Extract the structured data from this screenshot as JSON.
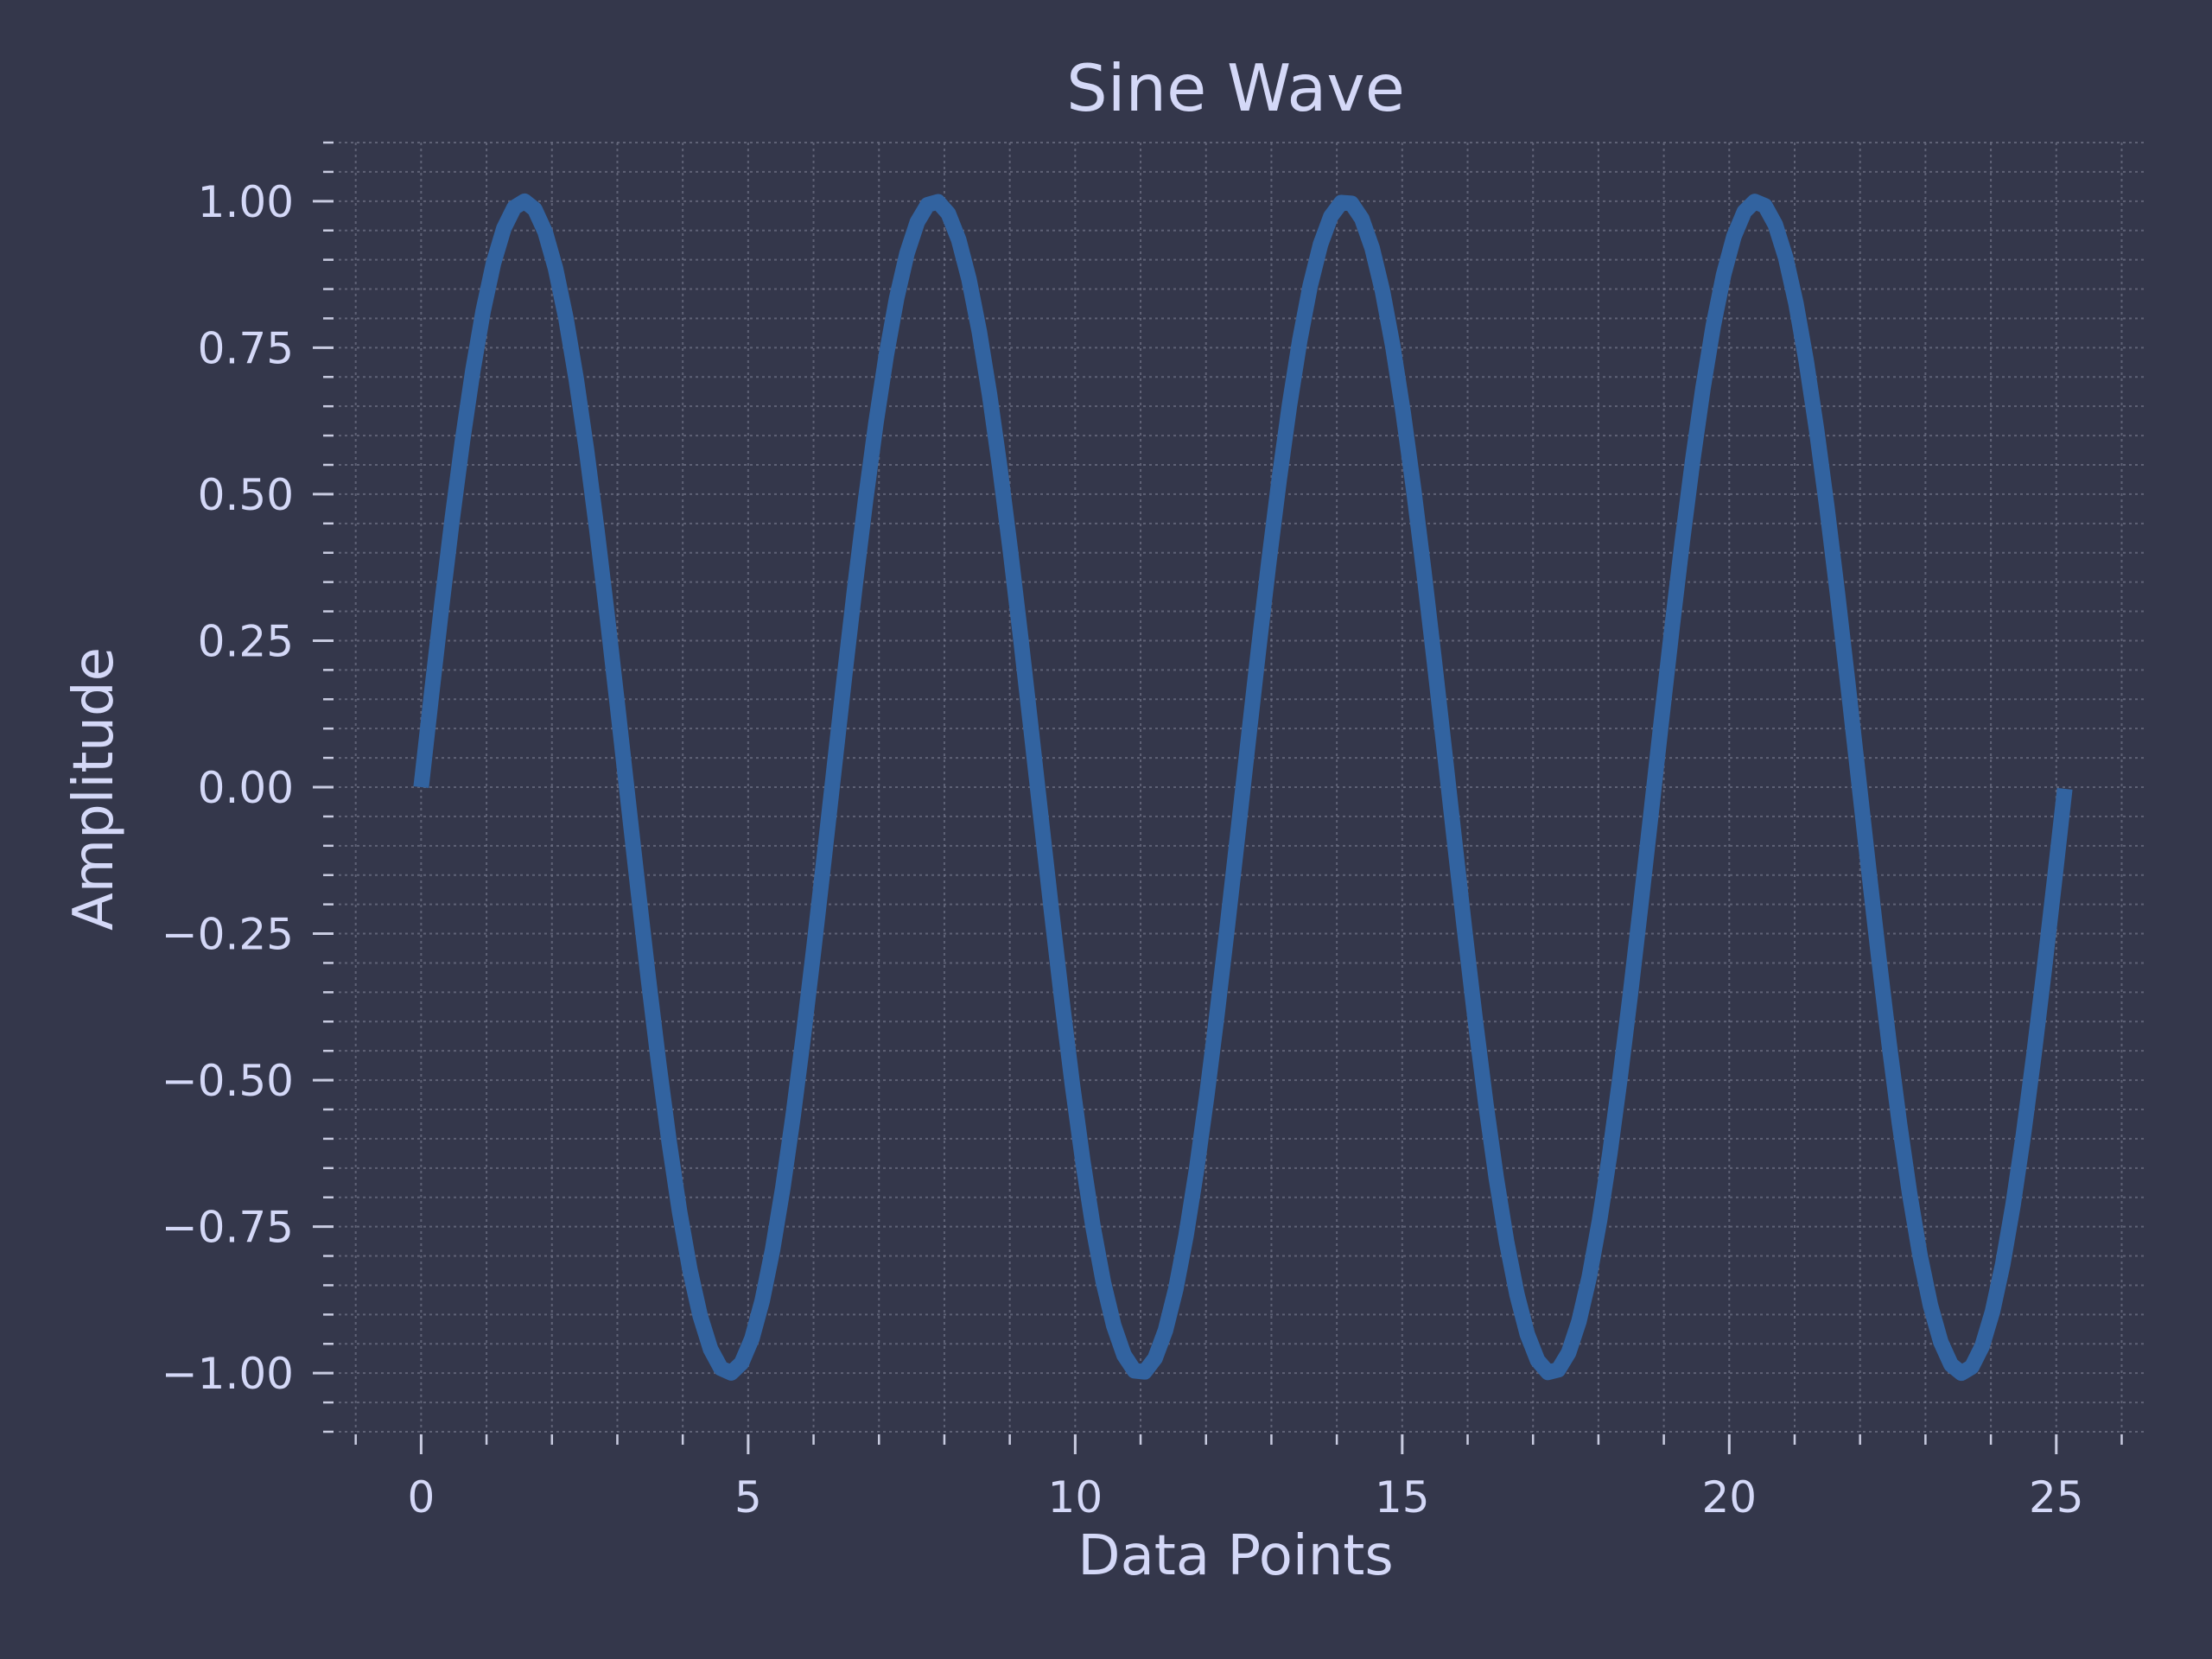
{
  "colors": {
    "background": "#34374b",
    "text": "#d4d8f7",
    "grid": "#6e7185",
    "tick": "#c8cbe0",
    "line": "#3263a0"
  },
  "chart_data": {
    "type": "line",
    "title": "Sine Wave",
    "xlabel": "Data Points",
    "ylabel": "Amplitude",
    "xlim": [
      -1.26,
      26.39
    ],
    "ylim": [
      -1.1,
      1.1
    ],
    "xticks": [
      0,
      5,
      10,
      15,
      20,
      25
    ],
    "xtick_labels": [
      "0",
      "5",
      "10",
      "15",
      "20",
      "25"
    ],
    "x_minor_step": 1,
    "yticks": [
      1.0,
      0.75,
      0.5,
      0.25,
      0.0,
      -0.25,
      -0.5,
      -0.75,
      -1.0
    ],
    "ytick_labels": [
      "1.00",
      "0.75",
      "0.50",
      "0.25",
      "0.00",
      "−0.25",
      "−0.50",
      "−0.75",
      "−1.00"
    ],
    "y_minor_step": 0.05,
    "grid": true,
    "series": [
      {
        "function": "sin(x)",
        "x_start": 0,
        "x_end": 25.13,
        "num_points": 160
      }
    ]
  }
}
